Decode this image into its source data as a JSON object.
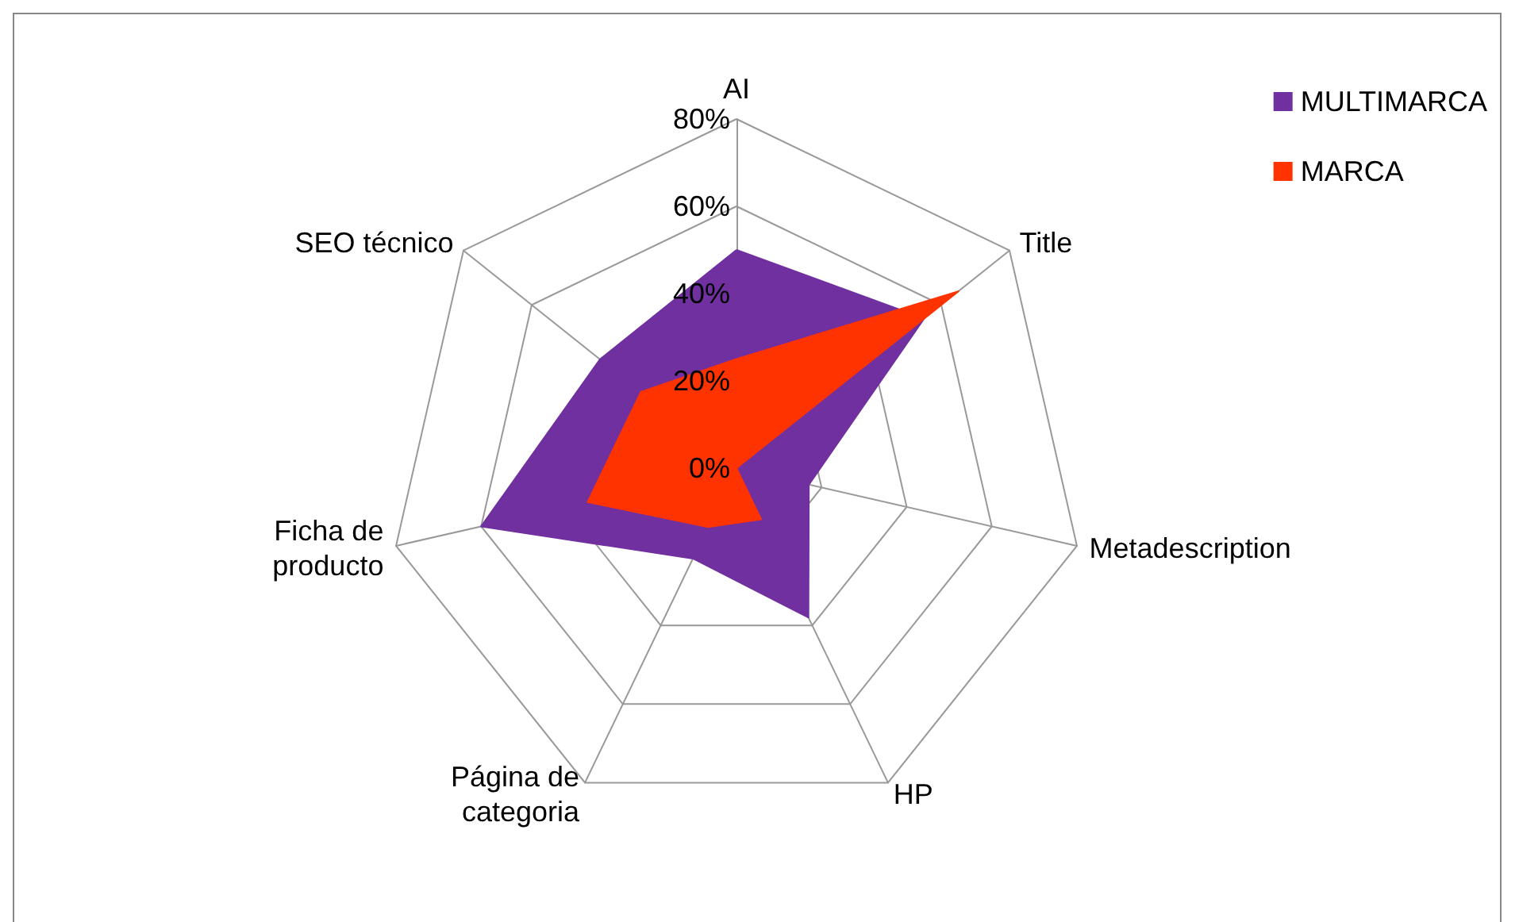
{
  "chart_data": {
    "type": "radar",
    "categories": [
      "AI",
      "Title",
      "Metadescription",
      "HP",
      "Página de categoria",
      "Ficha de producto",
      "SEO técnico"
    ],
    "series": [
      {
        "name": "MULTIMARCA",
        "color": "#7030a0",
        "values": [
          50,
          55,
          17,
          38,
          23,
          60,
          40
        ]
      },
      {
        "name": "MARCA",
        "color": "#ff3300",
        "values": [
          25,
          65,
          0,
          13,
          15,
          35,
          28
        ]
      }
    ],
    "ylim": [
      0,
      80
    ],
    "yticks": [
      {
        "value": 0,
        "label": "0%"
      },
      {
        "value": 20,
        "label": "20%"
      },
      {
        "value": 40,
        "label": "40%"
      },
      {
        "value": 60,
        "label": "60%"
      },
      {
        "value": 80,
        "label": "80%"
      }
    ],
    "legend": "top right",
    "grid": true
  }
}
